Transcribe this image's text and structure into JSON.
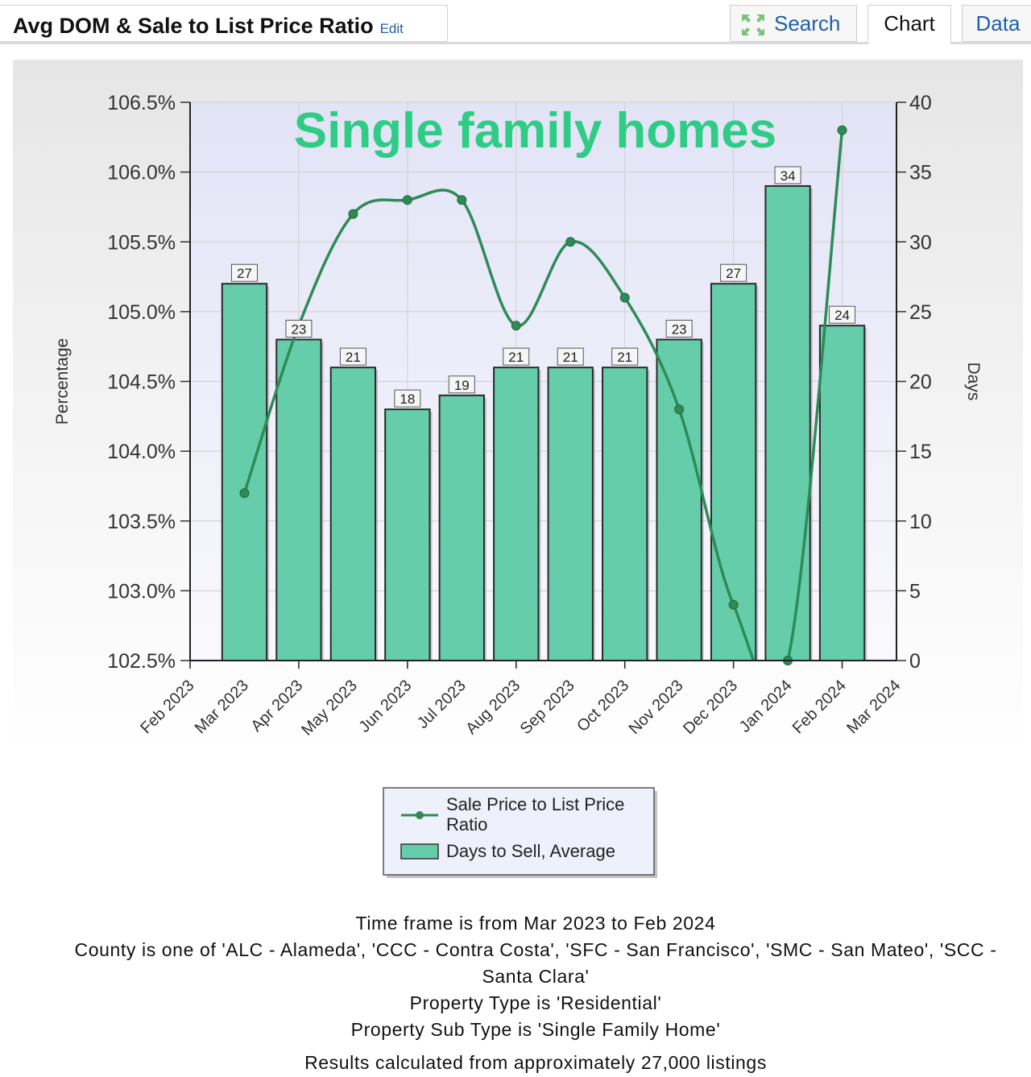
{
  "header": {
    "title": "Avg DOM & Sale to List Price Ratio",
    "edit_label": "Edit"
  },
  "tabs": {
    "search_label": "Search",
    "search_icon": "expand-arrows-icon",
    "chart_label": "Chart",
    "data_label": "Data",
    "active": "Chart"
  },
  "chart_data": {
    "type": "bar",
    "title": "Single family homes",
    "title_color": "#2ecc85",
    "categories": [
      "Mar 2023",
      "Apr 2023",
      "May 2023",
      "Jun 2023",
      "Jul 2023",
      "Aug 2023",
      "Sep 2023",
      "Oct 2023",
      "Nov 2023",
      "Dec 2023",
      "Jan 2024",
      "Feb 2024"
    ],
    "x_tick_labels": [
      "Feb 2023",
      "Mar 2023",
      "Apr 2023",
      "May 2023",
      "Jun 2023",
      "Jul 2023",
      "Aug 2023",
      "Sep 2023",
      "Oct 2023",
      "Nov 2023",
      "Dec 2023",
      "Jan 2024",
      "Feb 2024",
      "Mar 2024"
    ],
    "series": [
      {
        "name": "Days to Sell, Average",
        "type": "bar",
        "axis": "right",
        "color": "#66cdaa",
        "values": [
          27,
          23,
          21,
          18,
          19,
          21,
          21,
          21,
          23,
          27,
          34,
          24
        ],
        "data_labels": [
          "27",
          "23",
          "21",
          "18",
          "19",
          "21",
          "21",
          "21",
          "23",
          "27",
          "34",
          "24"
        ]
      },
      {
        "name": "Sale Price to List Price Ratio",
        "type": "line",
        "axis": "left",
        "color": "#2e8b57",
        "values": [
          103.7,
          104.9,
          105.7,
          105.8,
          105.8,
          104.9,
          105.5,
          105.1,
          104.3,
          102.9,
          102.5,
          106.3
        ]
      }
    ],
    "left_axis": {
      "label": "Percentage",
      "min": 102.5,
      "max": 106.5,
      "ticks": [
        "102.5%",
        "103.0%",
        "103.5%",
        "104.0%",
        "104.5%",
        "105.0%",
        "105.5%",
        "106.0%",
        "106.5%"
      ]
    },
    "right_axis": {
      "label": "Days",
      "min": 0,
      "max": 40,
      "ticks": [
        "0",
        "5",
        "10",
        "15",
        "20",
        "25",
        "30",
        "35",
        "40"
      ]
    },
    "grid": true,
    "legend_position": "bottom-center"
  },
  "notes": {
    "time_frame": "Time frame is from Mar 2023 to Feb 2024",
    "county": "County is one of 'ALC - Alameda', 'CCC - Contra Costa', 'SFC - San Francisco', 'SMC - San Mateo', 'SCC - Santa Clara'",
    "property_type": "Property Type is 'Residential'",
    "property_sub_type": "Property Sub Type is 'Single Family Home'",
    "results": "Results calculated from approximately 27,000 listings"
  }
}
